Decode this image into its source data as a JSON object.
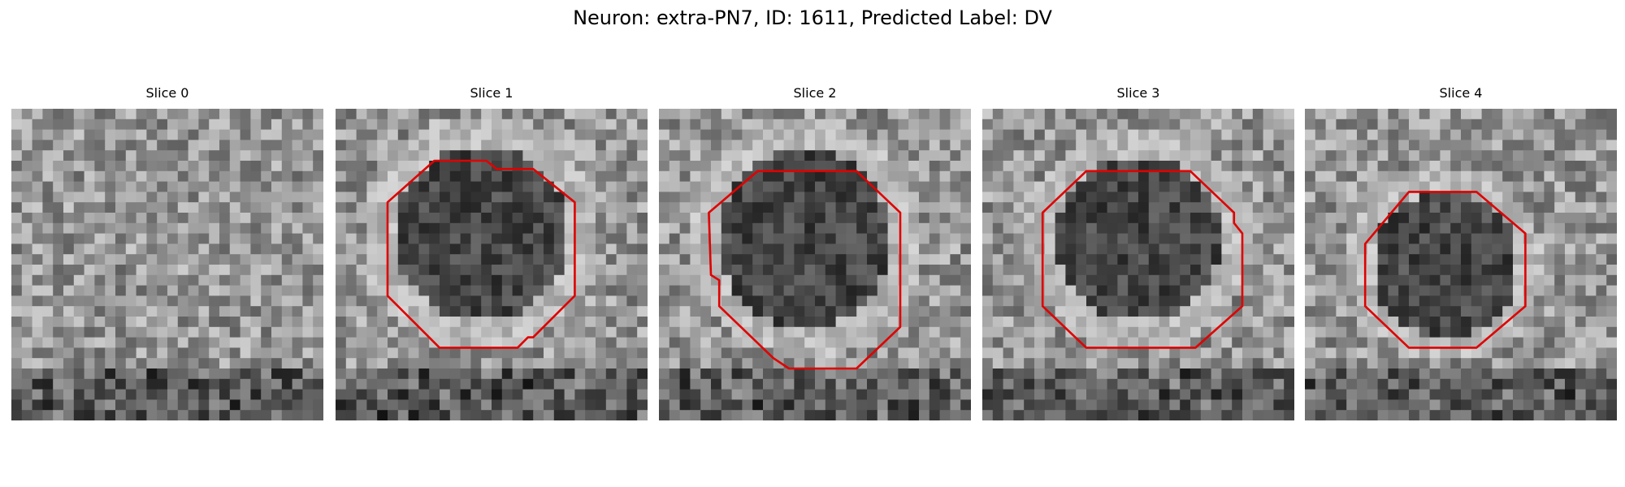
{
  "figure": {
    "title": "Neuron: extra-PN7, ID: 1611, Predicted Label: DV",
    "outline_color": "#e00000",
    "colormap": "gray",
    "grid_size": 30
  },
  "panels": [
    {
      "title": "Slice 0",
      "has_outline": false,
      "dark_region": null,
      "outline": []
    },
    {
      "title": "Slice 1",
      "has_outline": true,
      "dark_region": {
        "cx": 14.0,
        "cy": 12.0,
        "r": 8.5
      },
      "outline": [
        [
          9.5,
          5.0
        ],
        [
          14.5,
          5.0
        ],
        [
          15.5,
          5.8
        ],
        [
          19.0,
          5.8
        ],
        [
          23.0,
          9.0
        ],
        [
          23.0,
          18.0
        ],
        [
          19.0,
          22.0
        ],
        [
          18.5,
          22.0
        ],
        [
          17.5,
          23.0
        ],
        [
          10.0,
          23.0
        ],
        [
          6.0,
          19.0
        ],
        [
          5.0,
          18.0
        ],
        [
          5.0,
          9.0
        ]
      ]
    },
    {
      "title": "Slice 2",
      "has_outline": true,
      "dark_region": {
        "cx": 14.0,
        "cy": 12.5,
        "r": 8.5
      },
      "outline": [
        [
          9.5,
          6.0
        ],
        [
          19.0,
          6.0
        ],
        [
          23.2,
          10.0
        ],
        [
          23.2,
          21.0
        ],
        [
          19.0,
          25.0
        ],
        [
          12.5,
          25.0
        ],
        [
          11.0,
          24.0
        ],
        [
          5.8,
          19.0
        ],
        [
          5.8,
          16.5
        ],
        [
          5.0,
          16.0
        ],
        [
          4.8,
          10.0
        ]
      ]
    },
    {
      "title": "Slice 3",
      "has_outline": true,
      "dark_region": {
        "cx": 15.0,
        "cy": 12.5,
        "r": 8.0
      },
      "outline": [
        [
          10.0,
          6.0
        ],
        [
          20.0,
          6.0
        ],
        [
          24.2,
          10.0
        ],
        [
          24.2,
          11.0
        ],
        [
          25.0,
          12.0
        ],
        [
          25.0,
          19.0
        ],
        [
          20.5,
          23.0
        ],
        [
          10.0,
          23.0
        ],
        [
          5.8,
          19.0
        ],
        [
          5.8,
          10.0
        ]
      ]
    },
    {
      "title": "Slice 4",
      "has_outline": true,
      "dark_region": {
        "cx": 13.5,
        "cy": 15.0,
        "r": 7.0
      },
      "outline": [
        [
          10.0,
          8.0
        ],
        [
          16.5,
          8.0
        ],
        [
          21.2,
          12.0
        ],
        [
          21.2,
          19.0
        ],
        [
          16.5,
          23.0
        ],
        [
          10.0,
          23.0
        ],
        [
          5.8,
          19.0
        ],
        [
          5.8,
          13.0
        ]
      ]
    }
  ]
}
